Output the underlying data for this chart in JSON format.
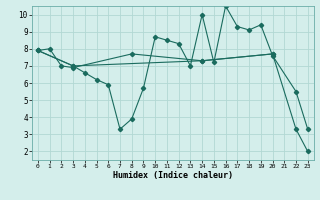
{
  "xlabel": "Humidex (Indice chaleur)",
  "bg_color": "#d4eeeb",
  "grid_color": "#b2d8d4",
  "line_color": "#1a6b5e",
  "xlim": [
    -0.5,
    23.5
  ],
  "ylim": [
    1.5,
    10.5
  ],
  "xticks": [
    0,
    1,
    2,
    3,
    4,
    5,
    6,
    7,
    8,
    9,
    10,
    11,
    12,
    13,
    14,
    15,
    16,
    17,
    18,
    19,
    20,
    21,
    22,
    23
  ],
  "yticks": [
    2,
    3,
    4,
    5,
    6,
    7,
    8,
    9,
    10
  ],
  "line1_x": [
    0,
    1,
    2,
    3,
    8,
    14,
    20
  ],
  "line1_y": [
    7.9,
    8.0,
    7.0,
    6.9,
    7.7,
    7.3,
    7.7
  ],
  "line2_x": [
    0,
    3,
    4,
    5,
    6,
    7,
    8,
    9,
    10,
    11,
    12,
    13,
    14,
    15,
    16,
    17,
    18,
    19,
    20,
    22,
    23
  ],
  "line2_y": [
    7.9,
    7.0,
    6.6,
    6.2,
    5.9,
    3.3,
    3.9,
    5.7,
    8.7,
    8.5,
    8.3,
    7.0,
    10.0,
    7.2,
    10.5,
    9.3,
    9.1,
    9.4,
    7.6,
    5.5,
    3.3
  ],
  "line3_x": [
    0,
    3,
    14,
    20,
    22,
    23
  ],
  "line3_y": [
    7.9,
    7.0,
    7.3,
    7.7,
    3.3,
    2.0
  ]
}
